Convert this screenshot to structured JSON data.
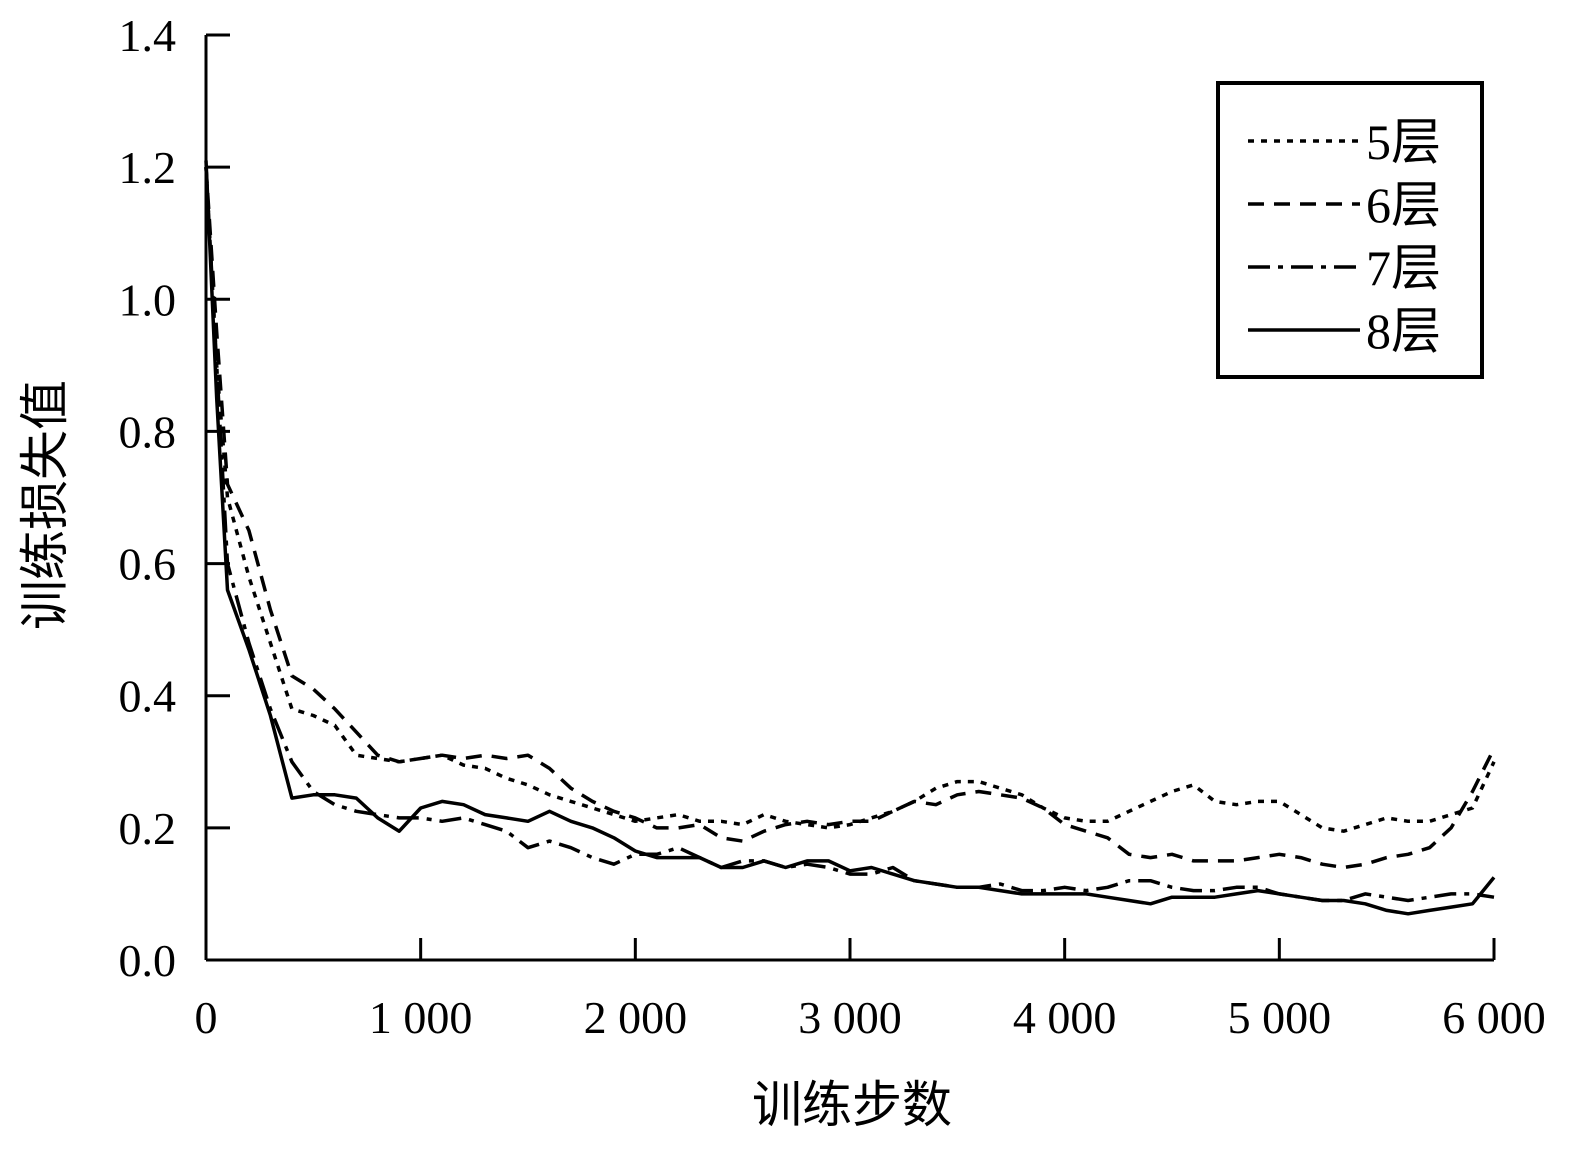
{
  "chart_data": {
    "type": "line",
    "xlabel": "训练步数",
    "ylabel": "训练损失值",
    "xlim": [
      0,
      6000
    ],
    "ylim": [
      0,
      1.4
    ],
    "x_ticks": [
      0,
      1000,
      2000,
      3000,
      4000,
      5000,
      6000
    ],
    "x_tick_labels": [
      "0",
      "1 000",
      "2 000",
      "3 000",
      "4 000",
      "5 000",
      "6 000"
    ],
    "y_ticks": [
      0.0,
      0.2,
      0.4,
      0.6,
      0.8,
      1.0,
      1.2,
      1.4
    ],
    "y_tick_labels": [
      "0.0",
      "0.2",
      "0.4",
      "0.6",
      "0.8",
      "1.0",
      "1.2",
      "1.4"
    ],
    "grid": false,
    "legend_position": "top-right",
    "series": [
      {
        "name": "5层",
        "dash": "dotted",
        "x": [
          0,
          50,
          100,
          200,
          300,
          400,
          500,
          600,
          700,
          800,
          900,
          1000,
          1100,
          1200,
          1300,
          1400,
          1500,
          1600,
          1700,
          1800,
          1900,
          2000,
          2100,
          2200,
          2300,
          2400,
          2500,
          2600,
          2700,
          2800,
          2900,
          3000,
          3100,
          3200,
          3300,
          3400,
          3500,
          3600,
          3700,
          3800,
          3900,
          4000,
          4100,
          4200,
          4300,
          4400,
          4500,
          4600,
          4700,
          4800,
          4900,
          5000,
          5100,
          5200,
          5300,
          5400,
          5500,
          5600,
          5700,
          5800,
          5900,
          6000
        ],
        "y": [
          1.2,
          0.9,
          0.7,
          0.58,
          0.48,
          0.38,
          0.37,
          0.355,
          0.31,
          0.305,
          0.3,
          0.305,
          0.31,
          0.295,
          0.29,
          0.275,
          0.265,
          0.25,
          0.24,
          0.23,
          0.22,
          0.21,
          0.215,
          0.22,
          0.21,
          0.21,
          0.205,
          0.22,
          0.21,
          0.205,
          0.2,
          0.205,
          0.215,
          0.225,
          0.24,
          0.26,
          0.27,
          0.27,
          0.26,
          0.25,
          0.23,
          0.215,
          0.21,
          0.21,
          0.225,
          0.24,
          0.255,
          0.265,
          0.24,
          0.235,
          0.24,
          0.24,
          0.22,
          0.2,
          0.195,
          0.205,
          0.215,
          0.21,
          0.21,
          0.22,
          0.23,
          0.3
        ]
      },
      {
        "name": "6层",
        "dash": "dashed",
        "x": [
          0,
          50,
          100,
          200,
          300,
          400,
          500,
          600,
          700,
          800,
          900,
          1000,
          1100,
          1200,
          1300,
          1400,
          1500,
          1600,
          1700,
          1800,
          1900,
          2000,
          2100,
          2200,
          2300,
          2400,
          2500,
          2600,
          2700,
          2800,
          2900,
          3000,
          3100,
          3200,
          3300,
          3400,
          3500,
          3600,
          3700,
          3800,
          3900,
          4000,
          4100,
          4200,
          4300,
          4400,
          4500,
          4600,
          4700,
          4800,
          4900,
          5000,
          5100,
          5200,
          5300,
          5400,
          5500,
          5600,
          5700,
          5800,
          5900,
          6000
        ],
        "y": [
          1.2,
          0.95,
          0.72,
          0.65,
          0.53,
          0.43,
          0.41,
          0.38,
          0.345,
          0.31,
          0.3,
          0.305,
          0.31,
          0.305,
          0.31,
          0.305,
          0.31,
          0.29,
          0.26,
          0.24,
          0.225,
          0.215,
          0.2,
          0.2,
          0.205,
          0.185,
          0.18,
          0.195,
          0.205,
          0.21,
          0.205,
          0.21,
          0.21,
          0.225,
          0.24,
          0.235,
          0.25,
          0.255,
          0.25,
          0.245,
          0.23,
          0.205,
          0.195,
          0.185,
          0.16,
          0.155,
          0.16,
          0.15,
          0.15,
          0.15,
          0.155,
          0.16,
          0.155,
          0.145,
          0.14,
          0.145,
          0.155,
          0.16,
          0.17,
          0.2,
          0.255,
          0.32
        ]
      },
      {
        "name": "7层",
        "dash": "dash-dot",
        "x": [
          0,
          50,
          100,
          200,
          300,
          400,
          500,
          600,
          700,
          800,
          900,
          1000,
          1100,
          1200,
          1300,
          1400,
          1500,
          1600,
          1700,
          1800,
          1900,
          2000,
          2100,
          2200,
          2300,
          2400,
          2500,
          2600,
          2700,
          2800,
          2900,
          3000,
          3100,
          3200,
          3300,
          3400,
          3500,
          3600,
          3700,
          3800,
          3900,
          4000,
          4100,
          4200,
          4300,
          4400,
          4500,
          4600,
          4700,
          4800,
          4900,
          5000,
          5100,
          5200,
          5300,
          5400,
          5500,
          5600,
          5700,
          5800,
          5900,
          6000
        ],
        "y": [
          1.2,
          0.9,
          0.6,
          0.48,
          0.38,
          0.3,
          0.255,
          0.235,
          0.225,
          0.22,
          0.215,
          0.215,
          0.21,
          0.215,
          0.205,
          0.195,
          0.17,
          0.18,
          0.17,
          0.155,
          0.145,
          0.16,
          0.16,
          0.17,
          0.155,
          0.14,
          0.15,
          0.15,
          0.14,
          0.145,
          0.14,
          0.13,
          0.13,
          0.14,
          0.12,
          0.115,
          0.11,
          0.11,
          0.115,
          0.105,
          0.105,
          0.11,
          0.105,
          0.11,
          0.12,
          0.12,
          0.11,
          0.105,
          0.105,
          0.11,
          0.11,
          0.1,
          0.095,
          0.09,
          0.09,
          0.1,
          0.095,
          0.09,
          0.095,
          0.1,
          0.1,
          0.095
        ]
      },
      {
        "name": "8层",
        "dash": "solid",
        "x": [
          0,
          50,
          100,
          200,
          300,
          400,
          500,
          600,
          700,
          800,
          900,
          1000,
          1100,
          1200,
          1300,
          1400,
          1500,
          1600,
          1700,
          1800,
          1900,
          2000,
          2100,
          2200,
          2300,
          2400,
          2500,
          2600,
          2700,
          2800,
          2900,
          3000,
          3100,
          3200,
          3300,
          3400,
          3500,
          3600,
          3700,
          3800,
          3900,
          4000,
          4100,
          4200,
          4300,
          4400,
          4500,
          4600,
          4700,
          4800,
          4900,
          5000,
          5100,
          5200,
          5300,
          5400,
          5500,
          5600,
          5700,
          5800,
          5900,
          6000
        ],
        "y": [
          1.21,
          0.85,
          0.56,
          0.47,
          0.37,
          0.245,
          0.25,
          0.25,
          0.245,
          0.215,
          0.195,
          0.23,
          0.24,
          0.235,
          0.22,
          0.215,
          0.21,
          0.225,
          0.21,
          0.2,
          0.185,
          0.165,
          0.155,
          0.155,
          0.155,
          0.14,
          0.14,
          0.15,
          0.14,
          0.15,
          0.15,
          0.135,
          0.14,
          0.13,
          0.12,
          0.115,
          0.11,
          0.11,
          0.105,
          0.1,
          0.1,
          0.1,
          0.1,
          0.095,
          0.09,
          0.085,
          0.095,
          0.095,
          0.095,
          0.1,
          0.105,
          0.1,
          0.095,
          0.09,
          0.09,
          0.085,
          0.075,
          0.07,
          0.075,
          0.08,
          0.085,
          0.125
        ]
      }
    ]
  }
}
